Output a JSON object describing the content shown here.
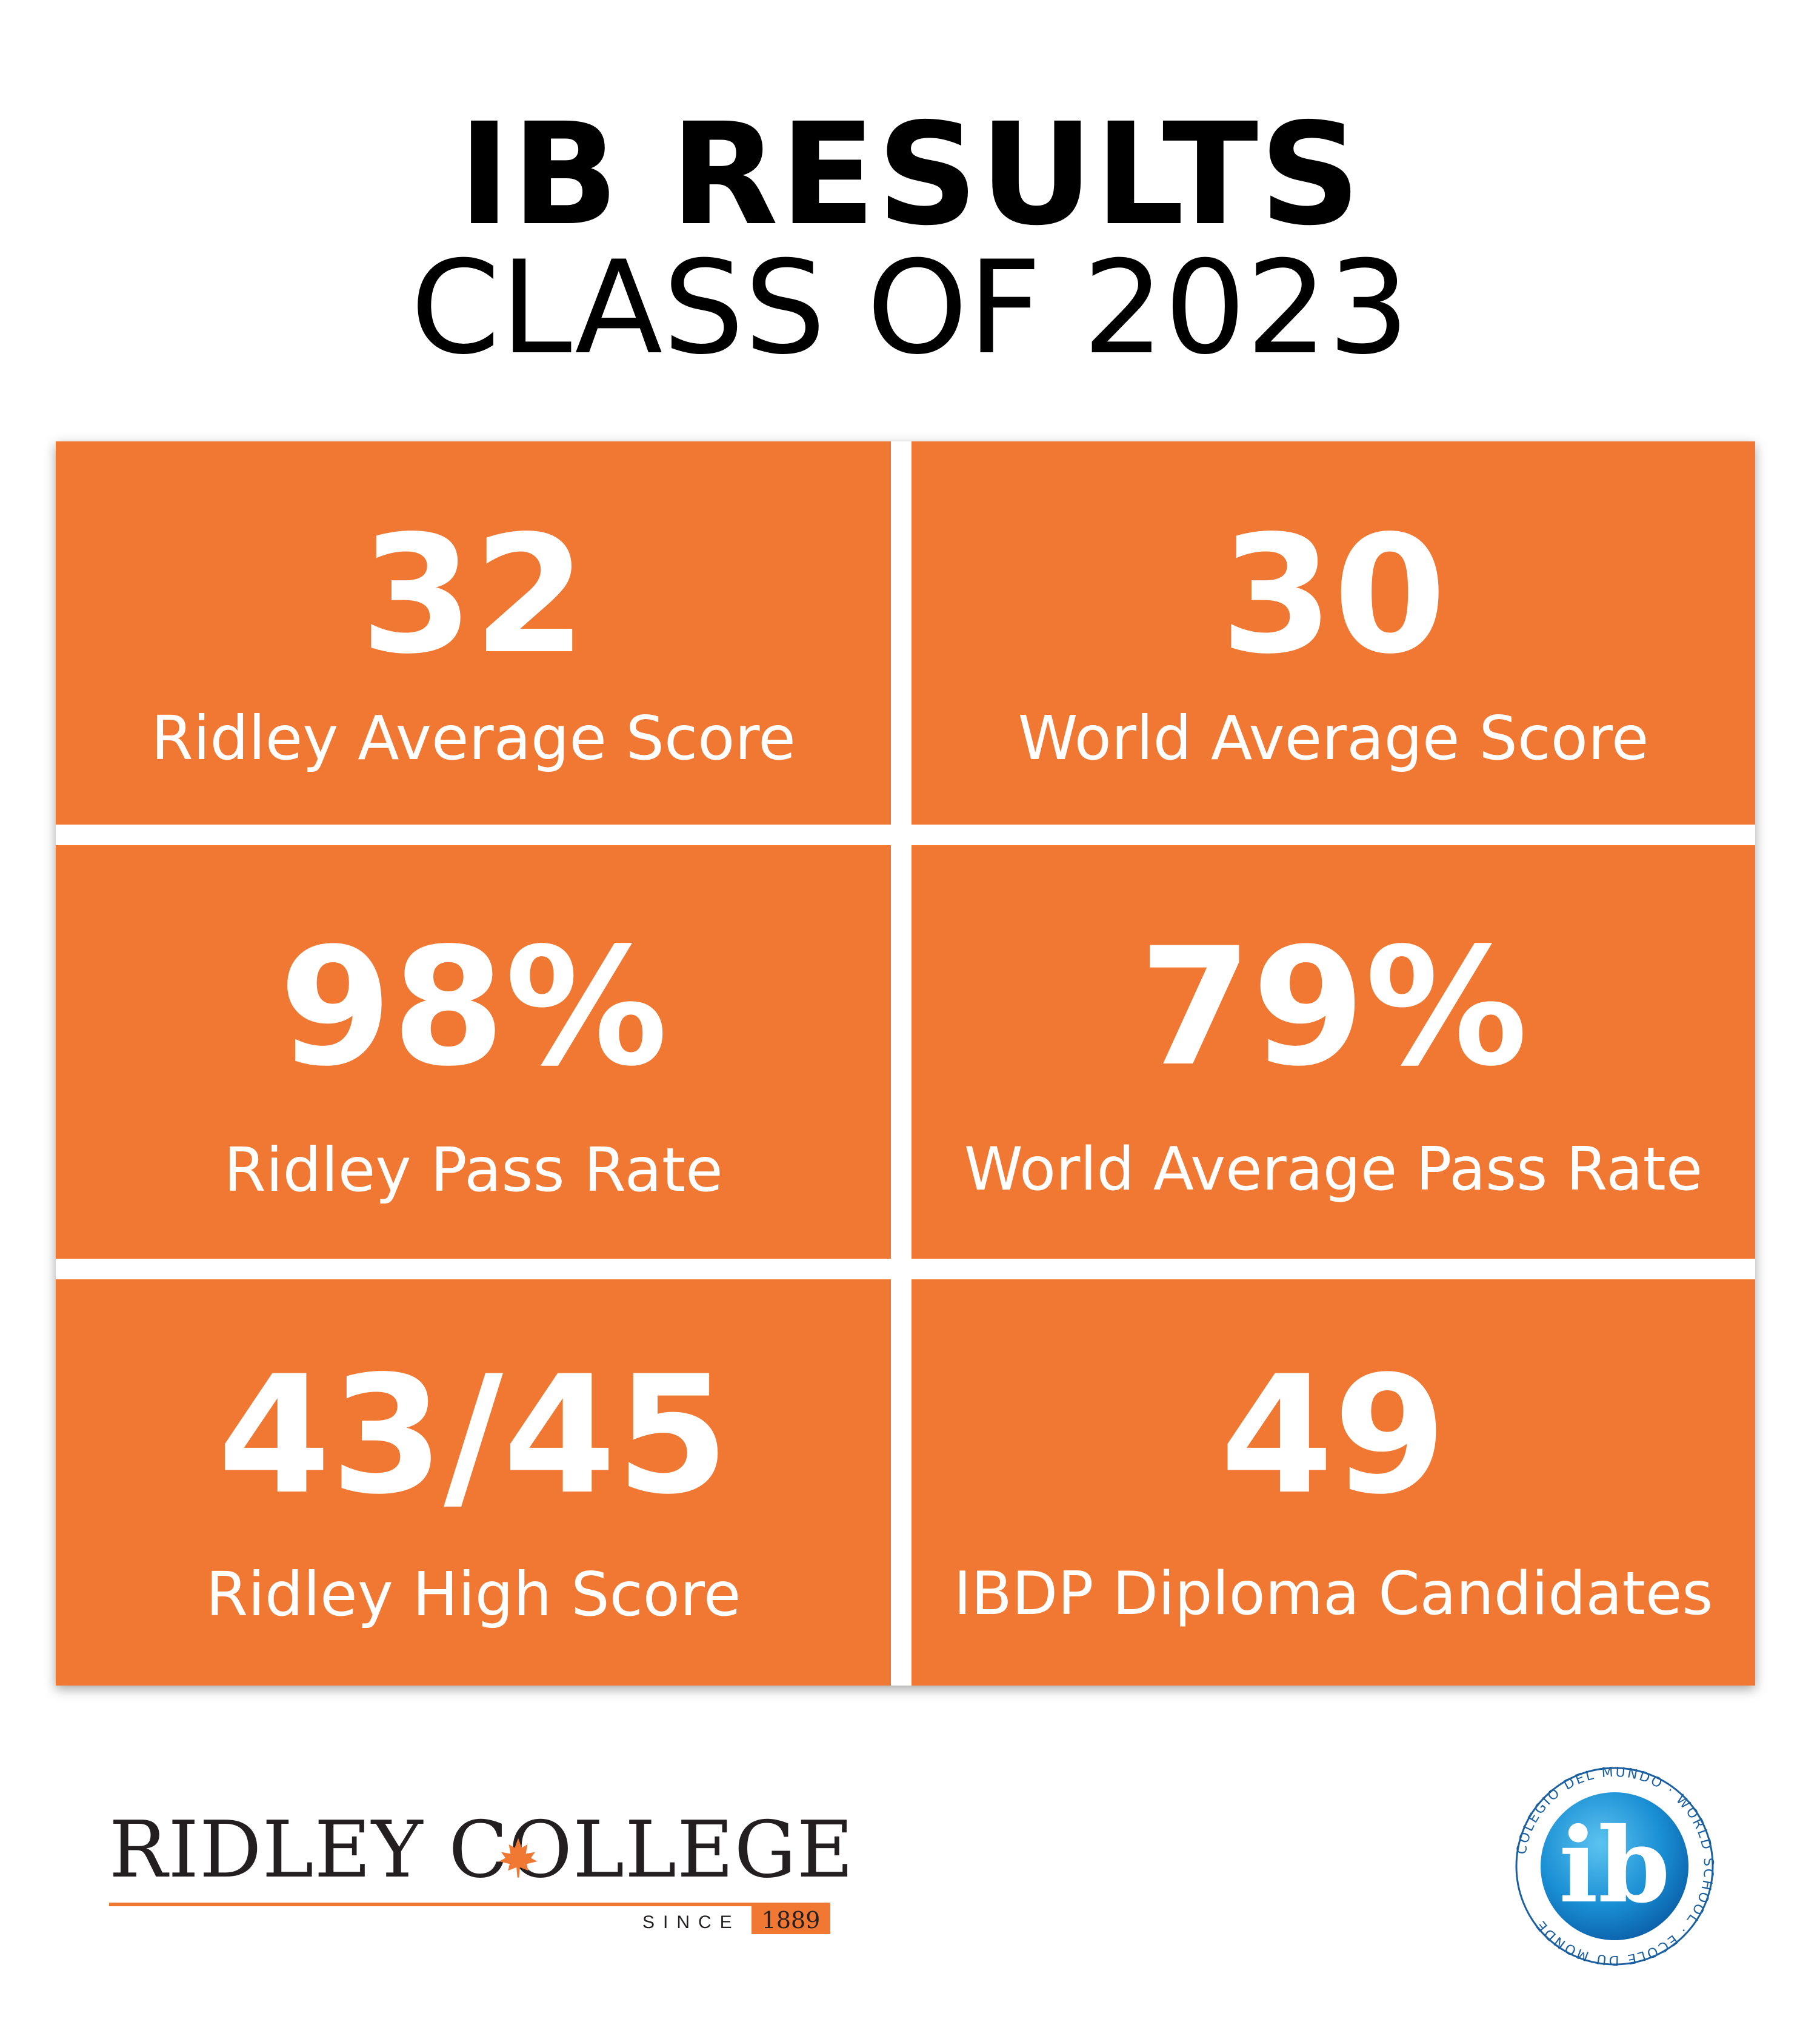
{
  "header": {
    "title": "IB RESULTS",
    "subtitle": "CLASS OF 2023"
  },
  "stats": [
    {
      "value": "32",
      "label": "Ridley Average Score"
    },
    {
      "value": "30",
      "label": "World Average Score"
    },
    {
      "value": "98%",
      "label": "Ridley Pass Rate"
    },
    {
      "value": "79%",
      "label": "World Average Pass Rate"
    },
    {
      "value": "43/45",
      "label": "Ridley High Score"
    },
    {
      "value": "49",
      "label": "IBDP Diploma Candidates"
    }
  ],
  "ridley_logo": {
    "name": "RIDLEY COLLEGE",
    "since": "SINCE",
    "year": "1889"
  },
  "ib_logo": {
    "mark": "ib",
    "ring_text": "COLEGIO DEL MUNDO · WORLD SCHOOL · ECOLE DU MONDE"
  },
  "colors": {
    "accent": "#f07832",
    "text": "#000000",
    "tile_text": "#ffffff",
    "ib_blue": "#1a8fd4"
  }
}
